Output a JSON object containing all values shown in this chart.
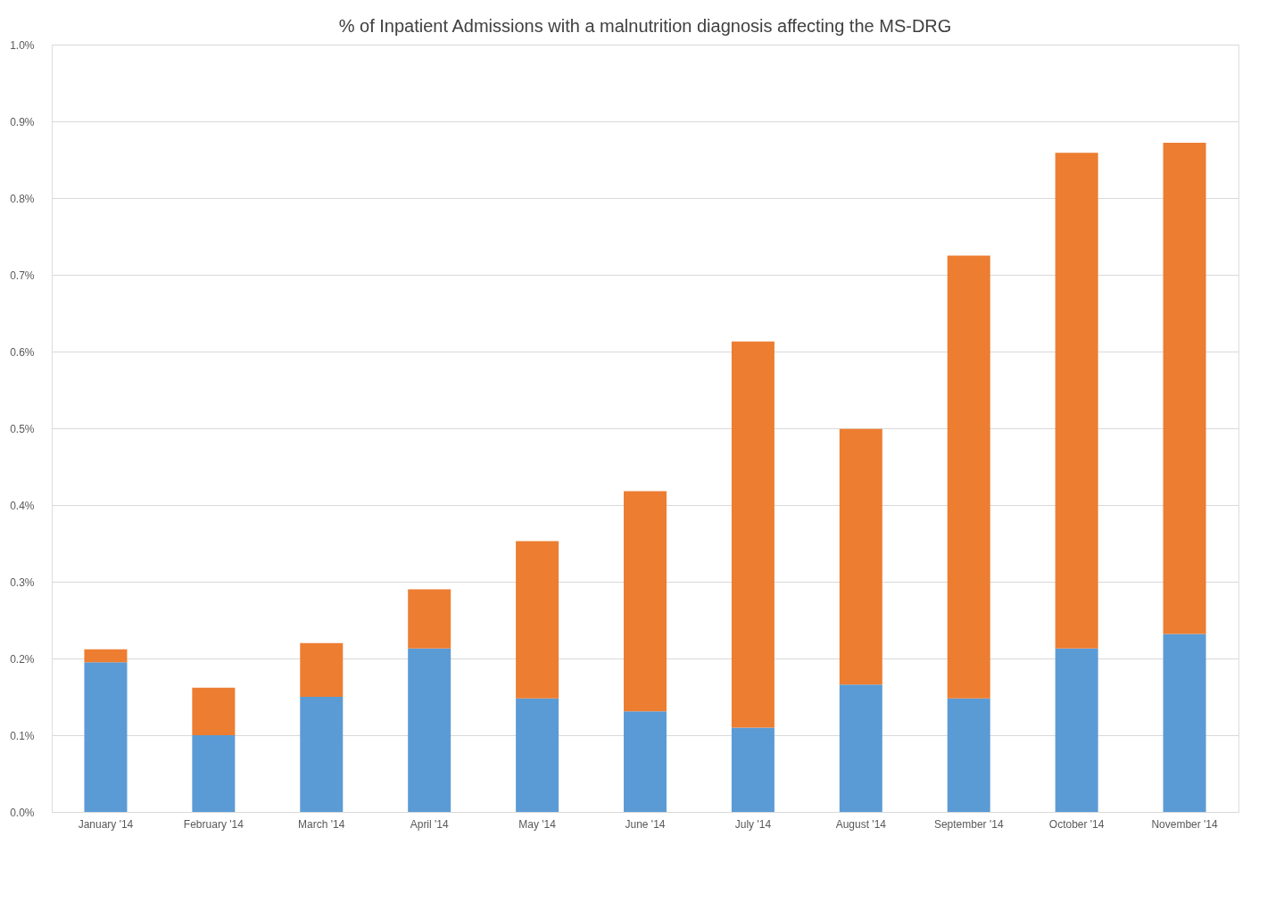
{
  "chart_data": {
    "type": "bar",
    "title": "% of Inpatient Admissions with a malnutrition diagnosis affecting the MS-DRG",
    "stacked": true,
    "categories": [
      "January '14",
      "February '14",
      "March '14",
      "April '14",
      "May '14",
      "June '14",
      "July '14",
      "August '14",
      "September '14",
      "October '14",
      "November '14"
    ],
    "series": [
      {
        "color": "#5b9bd5",
        "values": [
          0.195,
          0.1,
          0.15,
          0.213,
          0.148,
          0.131,
          0.11,
          0.166,
          0.148,
          0.213,
          0.232
        ]
      },
      {
        "color": "#ed7d31",
        "values": [
          0.017,
          0.062,
          0.07,
          0.077,
          0.205,
          0.287,
          0.503,
          0.333,
          0.577,
          0.646,
          0.64
        ]
      }
    ],
    "ylim": [
      0,
      1.0
    ],
    "yticks": [
      {
        "value": 0,
        "label": "0.0%"
      },
      {
        "value": 0.1,
        "label": "0.1%"
      },
      {
        "value": 0.2,
        "label": "0.2%"
      },
      {
        "value": 0.3,
        "label": "0.3%"
      },
      {
        "value": 0.4,
        "label": "0.4%"
      },
      {
        "value": 0.5,
        "label": "0.5%"
      },
      {
        "value": 0.6,
        "label": "0.6%"
      },
      {
        "value": 0.7,
        "label": "0.7%"
      },
      {
        "value": 0.8,
        "label": "0.8%"
      },
      {
        "value": 0.9,
        "label": "0.9%"
      },
      {
        "value": 1.0,
        "label": "1.0%"
      }
    ],
    "grid": "y"
  }
}
